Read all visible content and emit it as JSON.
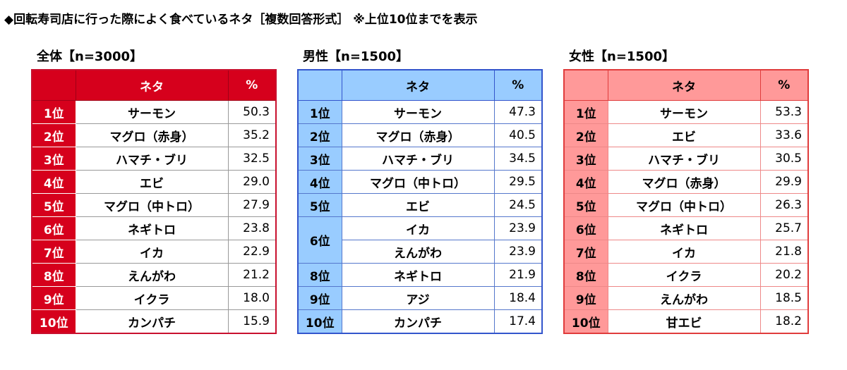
{
  "title": "◆回転寿司店に行った際によく食べているネタ［複数回答形式］ ※上位10位までを表示",
  "headers": {
    "neta": "ネタ",
    "pct": "%"
  },
  "chart_data": [
    {
      "type": "table",
      "title": "全体【n=3000】",
      "rows": [
        {
          "rank": "1位",
          "neta": "サーモン",
          "pct": "50.3"
        },
        {
          "rank": "2位",
          "neta": "マグロ（赤身）",
          "pct": "35.2"
        },
        {
          "rank": "3位",
          "neta": "ハマチ・ブリ",
          "pct": "32.5"
        },
        {
          "rank": "4位",
          "neta": "エビ",
          "pct": "29.0"
        },
        {
          "rank": "5位",
          "neta": "マグロ（中トロ）",
          "pct": "27.9"
        },
        {
          "rank": "6位",
          "neta": "ネギトロ",
          "pct": "23.8"
        },
        {
          "rank": "7位",
          "neta": "イカ",
          "pct": "22.9"
        },
        {
          "rank": "8位",
          "neta": "えんがわ",
          "pct": "21.2"
        },
        {
          "rank": "9位",
          "neta": "イクラ",
          "pct": "18.0"
        },
        {
          "rank": "10位",
          "neta": "カンパチ",
          "pct": "15.9"
        }
      ]
    },
    {
      "type": "table",
      "title": "男性【n=1500】",
      "rows": [
        {
          "rank": "1位",
          "neta": "サーモン",
          "pct": "47.3"
        },
        {
          "rank": "2位",
          "neta": "マグロ（赤身）",
          "pct": "40.5"
        },
        {
          "rank": "3位",
          "neta": "ハマチ・ブリ",
          "pct": "34.5"
        },
        {
          "rank": "4位",
          "neta": "マグロ（中トロ）",
          "pct": "29.5"
        },
        {
          "rank": "5位",
          "neta": "エビ",
          "pct": "24.5"
        },
        {
          "rank": "6位",
          "neta": "イカ",
          "pct": "23.9"
        },
        {
          "rank": "6位",
          "neta": "えんがわ",
          "pct": "23.9"
        },
        {
          "rank": "8位",
          "neta": "ネギトロ",
          "pct": "21.9"
        },
        {
          "rank": "9位",
          "neta": "アジ",
          "pct": "18.4"
        },
        {
          "rank": "10位",
          "neta": "カンパチ",
          "pct": "17.4"
        }
      ]
    },
    {
      "type": "table",
      "title": "女性【n=1500】",
      "rows": [
        {
          "rank": "1位",
          "neta": "サーモン",
          "pct": "53.3"
        },
        {
          "rank": "2位",
          "neta": "エビ",
          "pct": "33.6"
        },
        {
          "rank": "3位",
          "neta": "ハマチ・ブリ",
          "pct": "30.5"
        },
        {
          "rank": "4位",
          "neta": "マグロ（赤身）",
          "pct": "29.9"
        },
        {
          "rank": "5位",
          "neta": "マグロ（中トロ）",
          "pct": "26.3"
        },
        {
          "rank": "6位",
          "neta": "ネギトロ",
          "pct": "25.7"
        },
        {
          "rank": "7位",
          "neta": "イカ",
          "pct": "21.8"
        },
        {
          "rank": "8位",
          "neta": "イクラ",
          "pct": "20.2"
        },
        {
          "rank": "9位",
          "neta": "えんがわ",
          "pct": "18.5"
        },
        {
          "rank": "10位",
          "neta": "甘エビ",
          "pct": "18.2"
        }
      ]
    }
  ]
}
